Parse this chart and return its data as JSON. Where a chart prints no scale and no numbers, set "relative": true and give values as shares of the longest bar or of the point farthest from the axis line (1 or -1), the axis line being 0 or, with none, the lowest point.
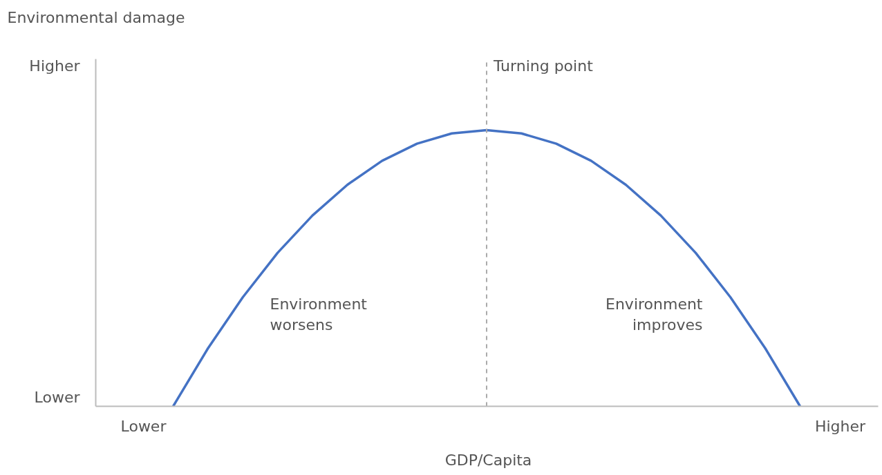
{
  "chart_data": {
    "type": "line",
    "relative": true,
    "xlabel": "GDP/Capita",
    "categories": [
      null,
      null,
      null,
      null,
      null,
      null,
      null,
      null,
      null,
      null,
      null,
      null,
      null,
      null,
      null,
      null,
      null,
      null,
      null
    ],
    "marker": "none",
    "line_style": "solid",
    "series": [
      {
        "color": "#4472c4",
        "values": [
          0,
          0.21,
          0.395,
          0.556,
          0.691,
          0.802,
          0.889,
          0.951,
          0.988,
          1,
          0.988,
          0.951,
          0.889,
          0.802,
          0.691,
          0.556,
          0.395,
          0.21,
          0
        ]
      }
    ],
    "annotations": [
      "Environmental damage",
      "Higher",
      "Lower",
      "Lower",
      "Higher",
      "Environment\nworsens",
      "Environment\nimproves",
      "Turning point"
    ]
  }
}
